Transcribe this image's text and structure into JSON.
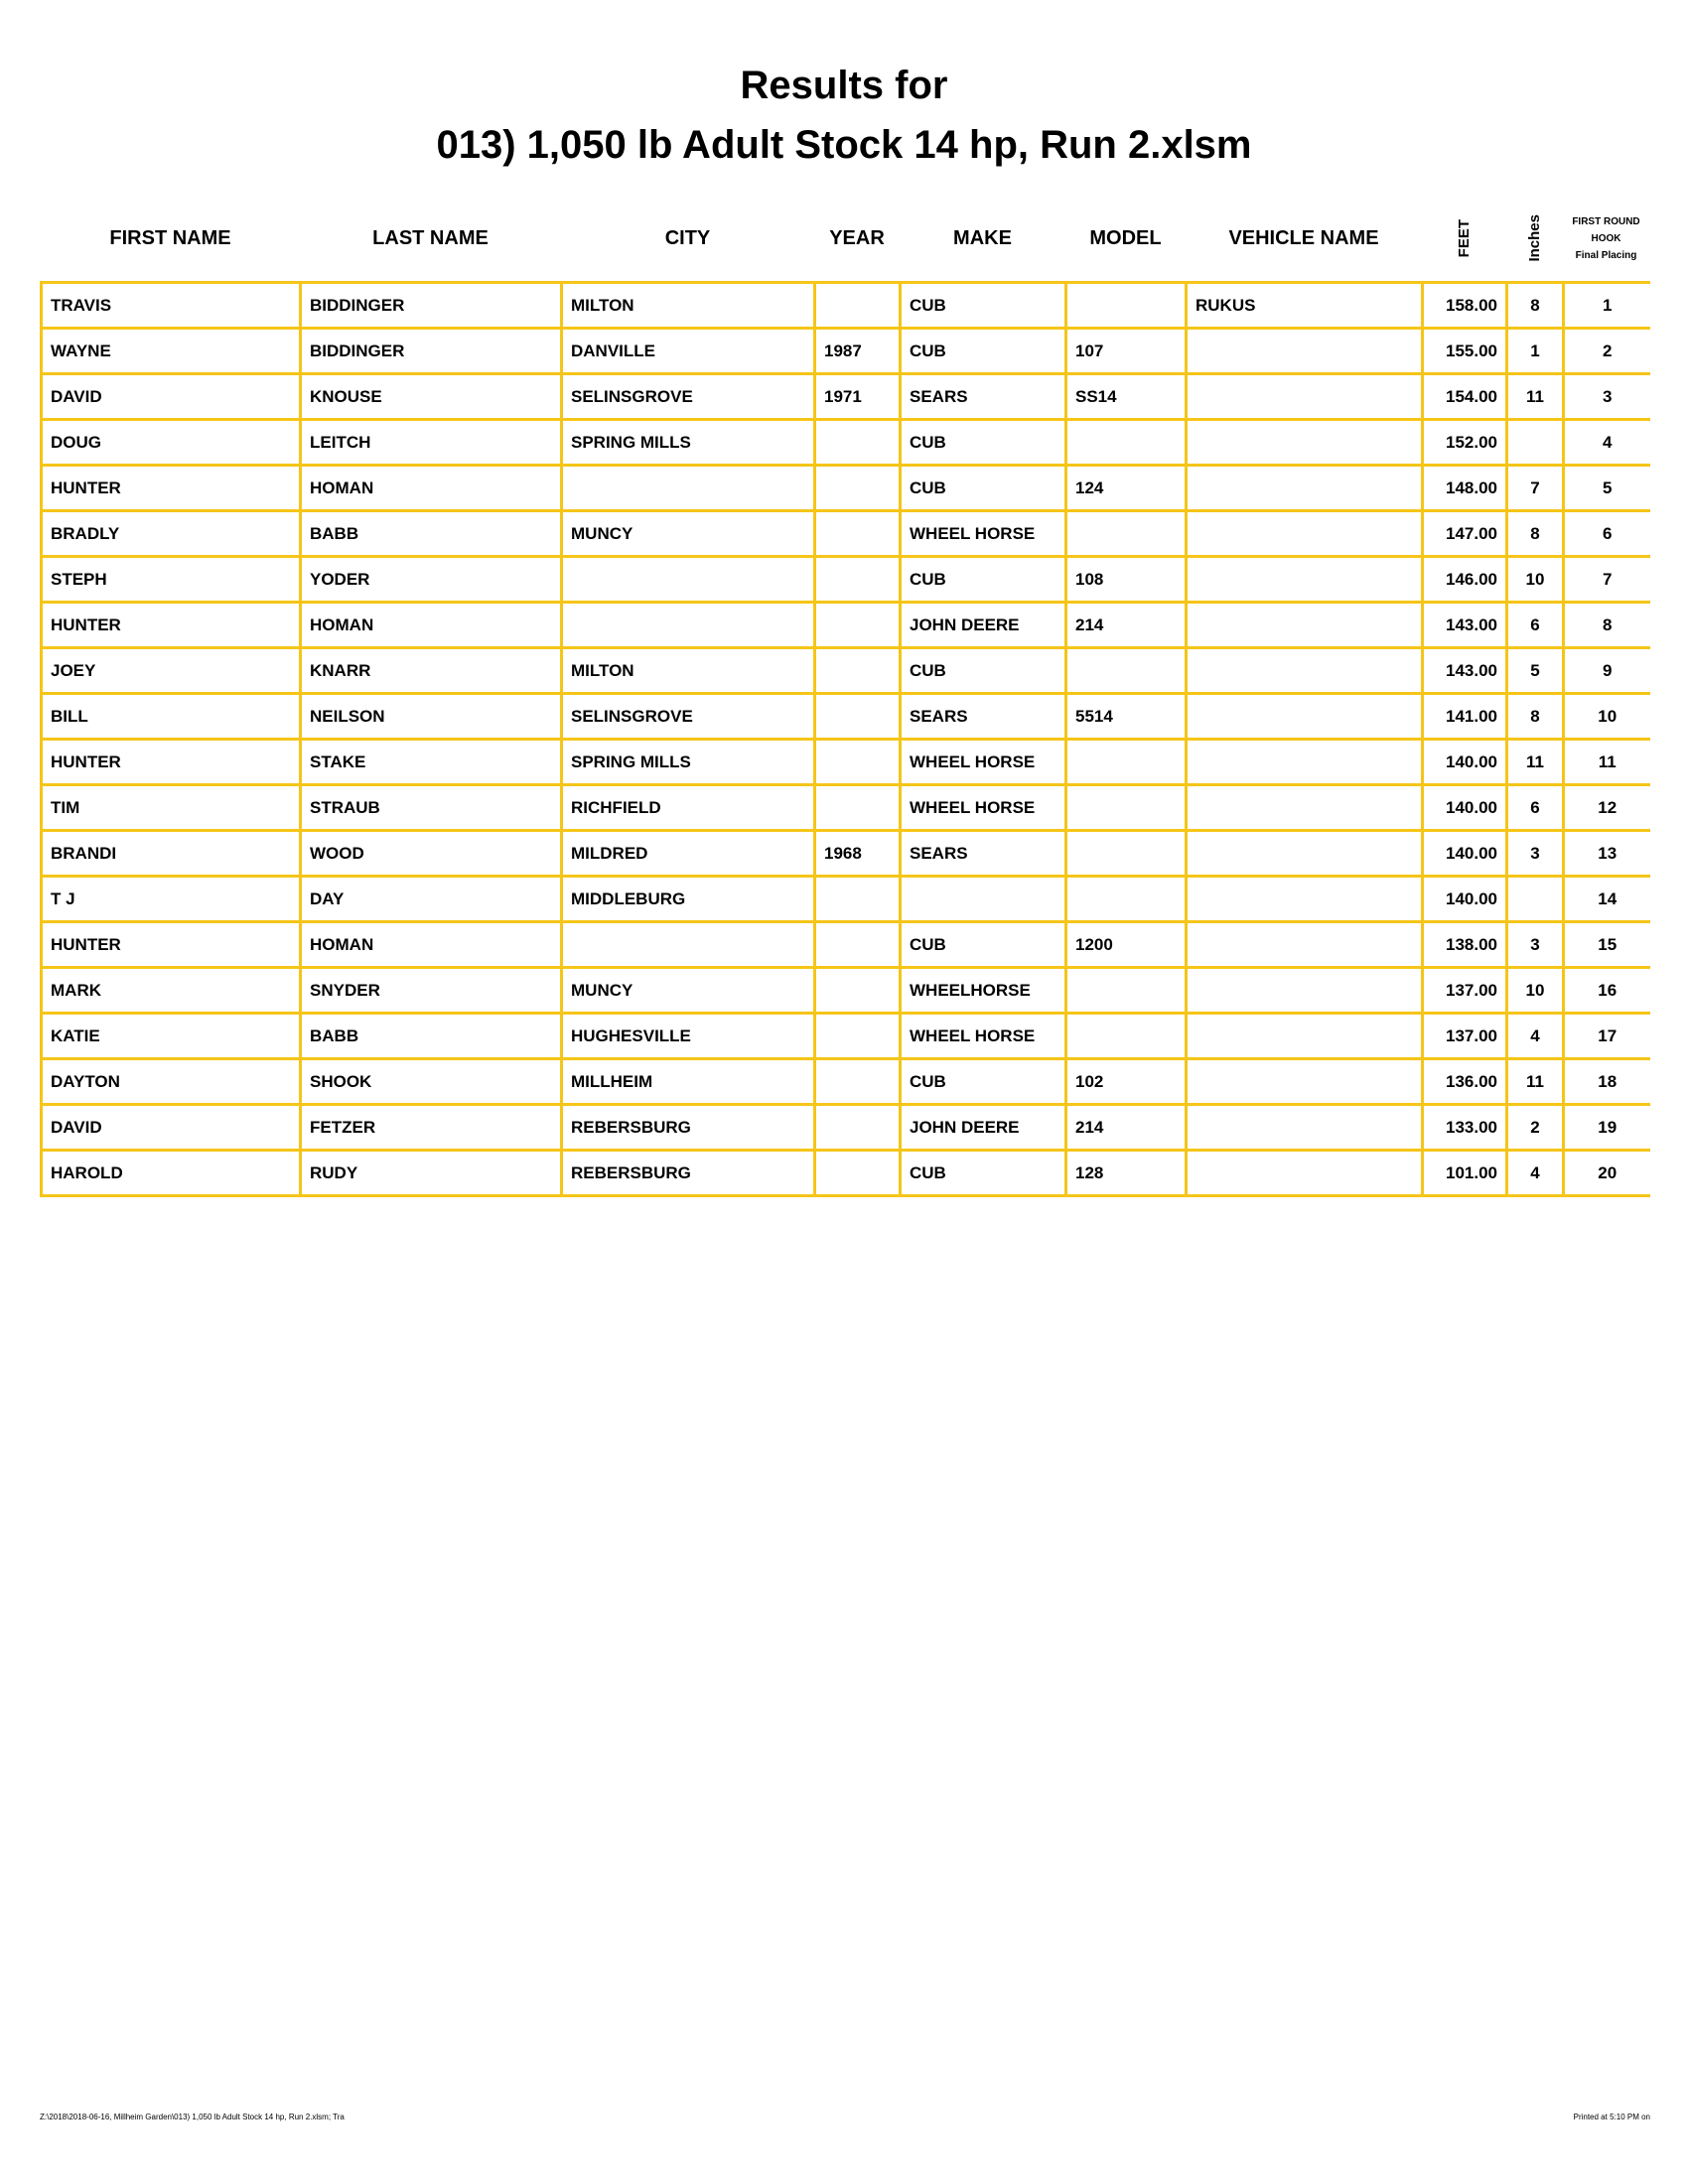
{
  "title_line1": "Results for",
  "title_line2": "013) 1,050 lb Adult Stock 14 hp, Run 2.xlsm",
  "headers": {
    "first_name": "FIRST NAME",
    "last_name": "LAST NAME",
    "city": "CITY",
    "year": "YEAR",
    "make": "MAKE",
    "model": "MODEL",
    "vehicle_name": "VEHICLE NAME",
    "feet": "FEET",
    "inches": "Inches",
    "placing_line1": "FIRST ROUND",
    "placing_line2": "HOOK",
    "placing_line3": "Final Placing"
  },
  "rows": [
    [
      "TRAVIS",
      "BIDDINGER",
      "MILTON",
      "",
      "CUB",
      "",
      "RUKUS",
      "158.00",
      "8",
      "1"
    ],
    [
      "WAYNE",
      "BIDDINGER",
      "DANVILLE",
      "1987",
      "CUB",
      "107",
      "",
      "155.00",
      "1",
      "2"
    ],
    [
      "DAVID",
      "KNOUSE",
      "SELINSGROVE",
      "1971",
      "SEARS",
      "SS14",
      "",
      "154.00",
      "11",
      "3"
    ],
    [
      "DOUG",
      "LEITCH",
      "SPRING MILLS",
      "",
      "CUB",
      "",
      "",
      "152.00",
      "",
      "4"
    ],
    [
      "HUNTER",
      "HOMAN",
      "",
      "",
      "CUB",
      "124",
      "",
      "148.00",
      "7",
      "5"
    ],
    [
      "BRADLY",
      "BABB",
      "MUNCY",
      "",
      "WHEEL HORSE",
      "",
      "",
      "147.00",
      "8",
      "6"
    ],
    [
      "STEPH",
      "YODER",
      "",
      "",
      "CUB",
      "108",
      "",
      "146.00",
      "10",
      "7"
    ],
    [
      "HUNTER",
      "HOMAN",
      "",
      "",
      "JOHN DEERE",
      "214",
      "",
      "143.00",
      "6",
      "8"
    ],
    [
      "JOEY",
      "KNARR",
      "MILTON",
      "",
      "CUB",
      "",
      "",
      "143.00",
      "5",
      "9"
    ],
    [
      "BILL",
      "NEILSON",
      "SELINSGROVE",
      "",
      "SEARS",
      "5514",
      "",
      "141.00",
      "8",
      "10"
    ],
    [
      "HUNTER",
      "STAKE",
      "SPRING MILLS",
      "",
      "WHEEL HORSE",
      "",
      "",
      "140.00",
      "11",
      "11"
    ],
    [
      "TIM",
      "STRAUB",
      "RICHFIELD",
      "",
      "WHEEL HORSE",
      "",
      "",
      "140.00",
      "6",
      "12"
    ],
    [
      "BRANDI",
      "WOOD",
      "MILDRED",
      "1968",
      "SEARS",
      "",
      "",
      "140.00",
      "3",
      "13"
    ],
    [
      "T J",
      "DAY",
      "MIDDLEBURG",
      "",
      "",
      "",
      "",
      "140.00",
      "",
      "14"
    ],
    [
      "HUNTER",
      "HOMAN",
      "",
      "",
      "CUB",
      "1200",
      "",
      "138.00",
      "3",
      "15"
    ],
    [
      "MARK",
      "SNYDER",
      "MUNCY",
      "",
      "WHEELHORSE",
      "",
      "",
      "137.00",
      "10",
      "16"
    ],
    [
      "KATIE",
      "BABB",
      "HUGHESVILLE",
      "",
      "WHEEL HORSE",
      "",
      "",
      "137.00",
      "4",
      "17"
    ],
    [
      "DAYTON",
      "SHOOK",
      "MILLHEIM",
      "",
      "CUB",
      "102",
      "",
      "136.00",
      "11",
      "18"
    ],
    [
      "DAVID",
      "FETZER",
      "REBERSBURG",
      "",
      "JOHN DEERE",
      "214",
      "",
      "133.00",
      "2",
      "19"
    ],
    [
      "HAROLD",
      "RUDY",
      "REBERSBURG",
      "",
      "CUB",
      "128",
      "",
      "101.00",
      "4",
      "20"
    ]
  ],
  "footer_left": "Z:\\2018\\2018-06-16, Millheim Garden\\013) 1,050 lb Adult Stock 14 hp, Run 2.xlsm; Tra",
  "footer_right": "Printed at 5:10 PM on",
  "colors": {
    "grid": "#F5C518",
    "text": "#000000"
  }
}
